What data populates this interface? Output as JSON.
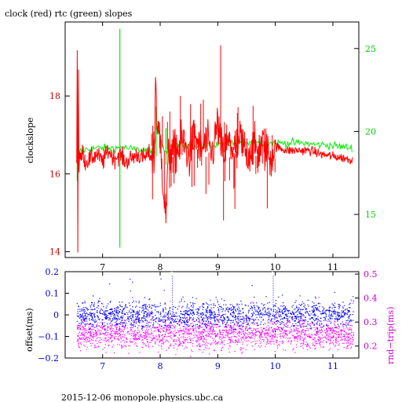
{
  "title": "clock (red) rtc (green) slopes",
  "footer": "2015-12-06  monopole.physics.ubc.ca",
  "colors": {
    "clock": "#ff0000",
    "rtc": "#00ee00",
    "offset": "#0000ff",
    "roundtrip": "#ff00ff",
    "axis_left_top": "#cc0000",
    "axis_right_top": "#00cc00",
    "axis_left_bottom": "#0000cc",
    "axis_right_bottom": "#cc00cc"
  },
  "chart_data": [
    {
      "type": "line",
      "title": "clock (red) rtc (green) slopes",
      "ylabel": "clockslope",
      "x_ticks": [
        "7",
        "8",
        "9",
        "10",
        "11"
      ],
      "y_left_ticks": [
        "14",
        "16",
        "18"
      ],
      "y_right_ticks": [
        "15",
        "20",
        "25"
      ],
      "xlim": [
        6.35,
        11.45
      ],
      "ylim": [
        13.85,
        19.9
      ],
      "y_right_lim": [
        12.4,
        26.6
      ],
      "grid": false,
      "series": [
        {
          "name": "clock",
          "axis": "left",
          "x": [
            6.55,
            6.56,
            6.57,
            6.58,
            6.59,
            6.6,
            6.62,
            6.65,
            6.7,
            6.8,
            6.9,
            7.0,
            7.1,
            7.2,
            7.3,
            7.4,
            7.5,
            7.6,
            7.7,
            7.8,
            7.9,
            7.92,
            7.95,
            8.0,
            8.05,
            8.1,
            8.12,
            8.15,
            8.2,
            8.3,
            8.4,
            8.5,
            8.6,
            8.7,
            8.8,
            8.9,
            9.0,
            9.05,
            9.1,
            9.2,
            9.3,
            9.4,
            9.5,
            9.6,
            9.7,
            9.8,
            9.9,
            10.0,
            10.2,
            10.4,
            10.6,
            10.8,
            11.0,
            11.2,
            11.35
          ],
          "y": [
            16.4,
            19.1,
            14.1,
            18.8,
            16.0,
            16.6,
            16.3,
            16.6,
            16.3,
            16.4,
            16.5,
            16.3,
            16.6,
            16.4,
            16.5,
            16.3,
            16.4,
            16.5,
            16.4,
            16.5,
            16.4,
            18.6,
            17.2,
            16.9,
            15.8,
            14.9,
            15.6,
            16.6,
            16.5,
            16.6,
            16.9,
            16.4,
            17.0,
            16.6,
            16.8,
            16.5,
            17.3,
            16.7,
            16.5,
            16.8,
            16.6,
            16.9,
            16.5,
            16.7,
            16.6,
            16.8,
            16.4,
            16.7,
            16.6,
            16.6,
            16.6,
            16.5,
            16.45,
            16.4,
            16.35
          ]
        },
        {
          "name": "rtc",
          "axis": "right",
          "x": [
            6.55,
            6.6,
            6.7,
            6.9,
            7.1,
            7.25,
            7.29,
            7.31,
            7.4,
            7.6,
            7.8,
            7.9,
            7.95,
            8.0,
            8.1,
            8.2,
            8.3,
            8.5,
            8.7,
            8.9,
            9.1,
            9.3,
            9.5,
            9.7,
            9.9,
            10.1,
            10.3,
            10.5,
            10.7,
            10.9,
            11.1,
            11.35
          ],
          "y": [
            19.0,
            18.8,
            18.9,
            19.0,
            19.0,
            19.0,
            19.0,
            19.1,
            19.0,
            18.9,
            18.9,
            19.0,
            20.2,
            19.6,
            18.8,
            19.1,
            19.2,
            19.1,
            19.2,
            19.1,
            19.2,
            19.3,
            19.4,
            19.4,
            19.3,
            19.3,
            19.3,
            19.3,
            19.2,
            19.2,
            19.1,
            19.0
          ]
        }
      ]
    },
    {
      "type": "scatter",
      "ylabel": "offset(ms)",
      "y2label": "rnd−trip(ms)",
      "x_ticks": [
        "7",
        "8",
        "9",
        "10",
        "11"
      ],
      "y_left_ticks": [
        "0.2",
        "0.1",
        "0",
        "−0.1",
        "−0.2"
      ],
      "y_right_ticks": [
        "0.5",
        "0.4",
        "0.3",
        "0.2"
      ],
      "xlim": [
        6.35,
        11.45
      ],
      "ylim": [
        -0.2,
        0.2
      ],
      "y_right_lim": [
        0.15,
        0.51
      ],
      "grid": false,
      "series": [
        {
          "name": "offset",
          "axis": "left",
          "x_range": [
            6.55,
            11.35
          ],
          "center": 0.0,
          "spread": 0.03
        },
        {
          "name": "rnd-trip",
          "axis": "right",
          "x_range": [
            6.55,
            11.35
          ],
          "center": 0.25,
          "spread": 0.03
        }
      ]
    }
  ]
}
